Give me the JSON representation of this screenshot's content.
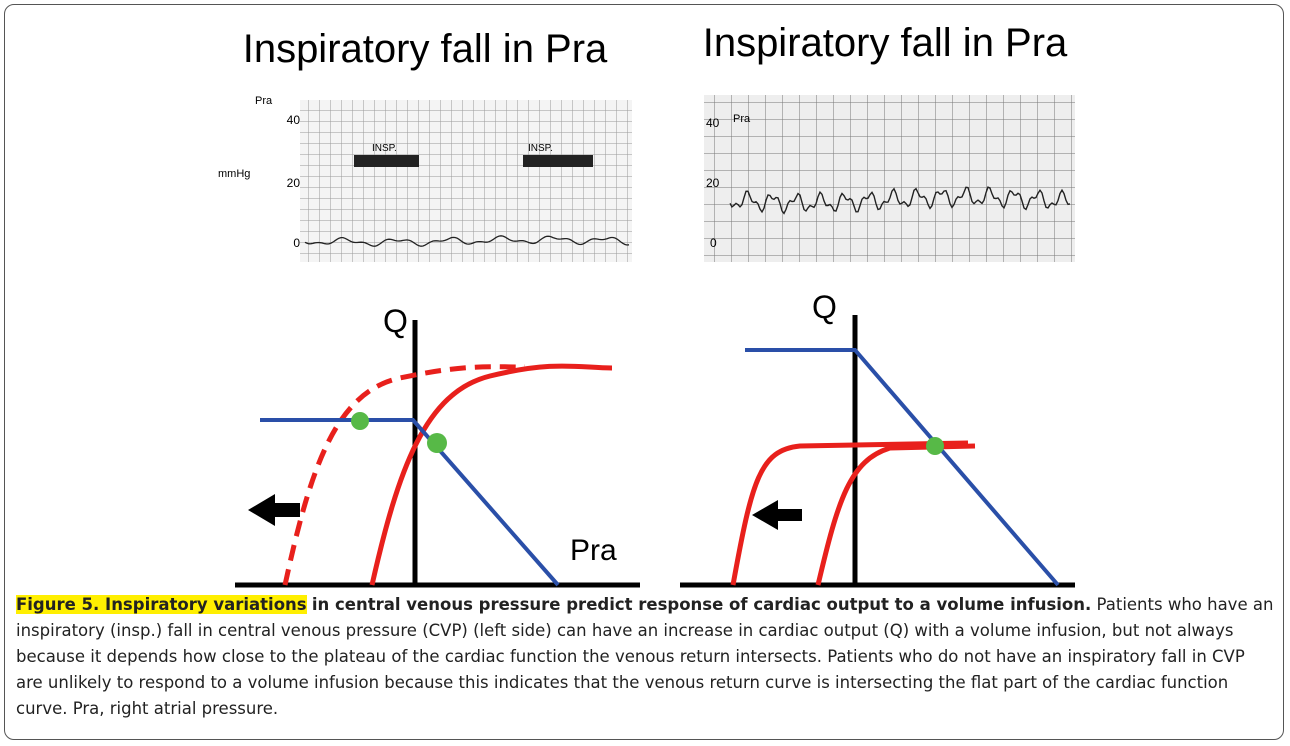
{
  "figure": {
    "panels": [
      {
        "title": "Inspiratory fall in Pra",
        "trace": {
          "axis_label": "Pra",
          "unit": "mmHg",
          "ticks": [
            "40",
            "20",
            "0"
          ],
          "markers": [
            "INSP.",
            "INSP."
          ]
        },
        "diagram": {
          "y_label": "Q",
          "x_label": "Pra"
        }
      },
      {
        "title": "Inspiratory fall in Pra",
        "trace": {
          "axis_label": "Pra",
          "ticks": [
            "40",
            "20",
            "0"
          ]
        },
        "diagram": {
          "y_label": "Q"
        }
      }
    ],
    "caption": {
      "label": "Figure 5. Inspiratory variations",
      "headline": "in central venous pressure predict response of cardiac output to a volume infusion.",
      "text": "Patients who have an inspiratory (insp.) fall in central venous pressure (CVP) (left side) can have an increase in cardiac output (Q) with a volume infusion, but not always because it depends how close to the plateau of the cardiac function the venous return intersects. Patients who do not have an inspiratory fall in CVP are unlikely to respond to a volume infusion because this indicates that the venous return curve is intersecting the flat part of the cardiac function curve. Pra, right atrial pressure."
    }
  }
}
